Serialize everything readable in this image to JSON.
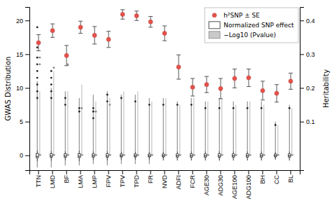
{
  "chart_data": {
    "type": "box",
    "categories": [
      "TTN",
      "LMD",
      "BF",
      "LMA",
      "LMP",
      "FPV",
      "TPV",
      "TPD",
      "FR",
      "NVD",
      "ADFI",
      "FCR",
      "AGE30",
      "ADG30",
      "AGE100",
      "ADG100",
      "BH",
      "CC",
      "BL"
    ],
    "ylabel": "GWAS Distribution",
    "y2label": "Heritability",
    "ylim": [
      -2.2,
      22
    ],
    "yticks": [
      0,
      5,
      10,
      15,
      20
    ],
    "y2lim": [
      -0.044,
      0.44
    ],
    "y2ticks": [
      0.1,
      0.2,
      0.3,
      0.4
    ],
    "legend": "upper right",
    "series": [
      {
        "name": "h²SNP ± SE",
        "type": "scatter",
        "marker": "circle",
        "color": "#e8524a",
        "values": [
          16.7,
          18.5,
          14.8,
          19.0,
          17.8,
          17.2,
          20.9,
          20.7,
          19.8,
          18.1,
          13.1,
          10.1,
          10.5,
          9.9,
          11.4,
          11.5,
          9.6,
          9.2,
          11.0
        ],
        "error": [
          1.2,
          1.0,
          1.5,
          0.9,
          1.3,
          1.2,
          0.7,
          0.7,
          0.8,
          1.1,
          1.8,
          1.3,
          1.2,
          1.5,
          1.4,
          1.3,
          1.4,
          1.3,
          1.2
        ]
      },
      {
        "name": "Normalized SNP effect",
        "type": "box",
        "color": "#222222",
        "median": [
          -0.15,
          -0.1,
          -0.1,
          -0.12,
          -0.08,
          -0.1,
          -0.08,
          -0.08,
          -0.08,
          -0.08,
          -0.08,
          -0.08,
          -0.08,
          -0.1,
          -0.08,
          -0.08,
          -0.08,
          -0.05,
          -0.08
        ],
        "q1": [
          -0.35,
          -0.28,
          -0.28,
          -0.32,
          -0.25,
          -0.28,
          -0.22,
          -0.22,
          -0.22,
          -0.22,
          -0.25,
          -0.25,
          -0.25,
          -0.28,
          -0.25,
          -0.25,
          -0.25,
          -0.22,
          -0.25
        ],
        "q3": [
          0.28,
          0.22,
          0.22,
          0.25,
          0.2,
          0.22,
          0.18,
          0.18,
          0.18,
          0.18,
          0.2,
          0.2,
          0.2,
          0.22,
          0.2,
          0.2,
          0.2,
          0.18,
          0.2
        ],
        "whislo": [
          -0.9,
          -0.8,
          -0.75,
          -0.85,
          -0.7,
          -0.75,
          -0.65,
          -0.65,
          -0.65,
          -0.65,
          -0.7,
          -0.7,
          -0.7,
          -0.75,
          -0.7,
          -0.7,
          -0.7,
          -0.6,
          -0.7
        ],
        "whishi": [
          0.75,
          0.65,
          0.6,
          0.7,
          0.58,
          0.62,
          0.55,
          0.55,
          0.55,
          0.55,
          0.58,
          0.58,
          0.58,
          0.62,
          0.58,
          0.58,
          0.58,
          0.5,
          0.58
        ],
        "upper_whisker": [
          11.0,
          10.0,
          9.5,
          8.5,
          9.0,
          9.5,
          9.0,
          9.0,
          8.5,
          8.5,
          8.0,
          8.5,
          8.0,
          8.5,
          8.0,
          8.0,
          8.0,
          5.0,
          7.5
        ],
        "lower_whisker": [
          -1.8,
          -1.8,
          -1.5,
          -1.5,
          -1.3,
          -1.5,
          -1.3,
          -1.3,
          -1.3,
          -0.8,
          -0.8,
          -0.8,
          -0.8,
          -0.8,
          -0.8,
          -0.8,
          -0.8,
          -0.5,
          -0.8
        ],
        "fliers": [
          [
            19.0,
            16.0,
            14.5,
            13.5,
            12.5,
            11.5,
            10.5,
            9.5,
            8.5
          ],
          [
            12.5,
            11.5,
            10.5,
            9.5,
            8.5
          ],
          [
            8.5,
            7.5
          ],
          [
            7.0,
            6.5
          ],
          [
            7.0,
            6.5,
            5.5
          ],
          [
            9.0,
            8.0
          ],
          [
            8.5
          ],
          [
            8.0
          ],
          [
            7.5
          ],
          [
            7.5
          ],
          [
            7.5
          ],
          [
            7.5
          ],
          [
            7.0
          ],
          [
            7.0
          ],
          [
            7.0
          ],
          [
            7.0
          ],
          [
            7.0
          ],
          [
            4.5
          ],
          [
            7.0
          ]
        ]
      },
      {
        "name": "−Log10 (Pvalue)",
        "type": "box",
        "color": "#888888",
        "median": [
          0.0,
          0.0,
          0.0,
          0.0,
          0.0,
          0.0,
          0.0,
          0.0,
          0.0,
          0.0,
          0.0,
          0.0,
          0.0,
          0.0,
          0.0,
          0.0,
          0.0,
          0.0,
          0.0
        ],
        "q1": [
          0.0,
          0.0,
          0.0,
          0.0,
          0.0,
          0.0,
          0.0,
          0.0,
          0.0,
          0.0,
          0.0,
          0.0,
          0.0,
          0.0,
          0.0,
          0.0,
          0.0,
          0.0,
          0.0
        ],
        "q3": [
          0.12,
          0.12,
          0.12,
          0.1,
          0.1,
          0.1,
          0.1,
          0.1,
          0.1,
          0.1,
          0.08,
          0.08,
          0.08,
          0.08,
          0.08,
          0.08,
          0.08,
          0.06,
          0.08
        ],
        "whishi": [
          9.5,
          12.5,
          9.5,
          10.5,
          8.0,
          8.5,
          9.5,
          9.5,
          8.0,
          8.5,
          7.5,
          8.5,
          8.0,
          8.5,
          7.5,
          8.0,
          7.5,
          4.5,
          7.0
        ],
        "fliers": [
          [
            14.5,
            13.5
          ],
          [
            13.0
          ],
          [
            13.5
          ],
          [
            7.0
          ],
          [
            6.5
          ],
          [
            7.5
          ],
          [],
          [],
          [],
          [],
          [],
          [],
          [],
          [],
          [],
          [],
          [],
          [],
          []
        ]
      }
    ]
  }
}
